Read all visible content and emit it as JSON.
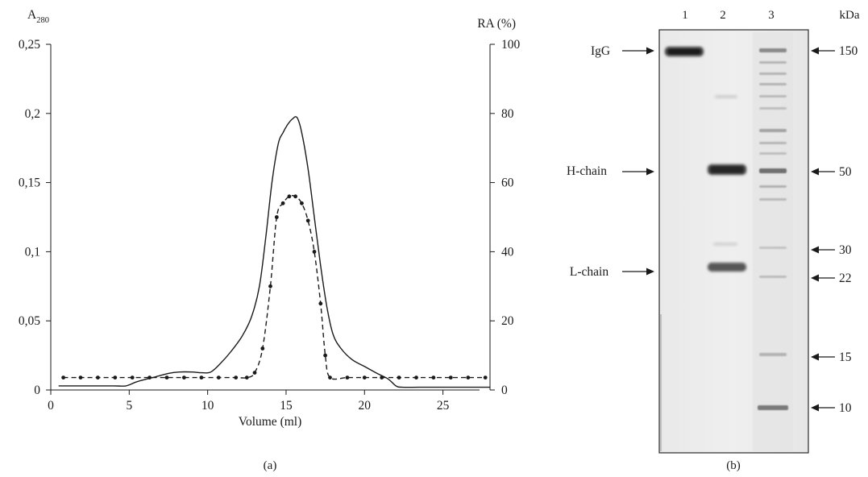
{
  "chart_data": [
    {
      "type": "line",
      "panel_label": "(a)",
      "xlabel": "Volume (ml)",
      "ylabel": "A",
      "ylabel_subscript": "280",
      "y2label": "RA (%)",
      "xlim": [
        0,
        28
      ],
      "ylim": [
        0,
        0.25
      ],
      "y2lim": [
        0,
        100
      ],
      "x_ticks": [
        0,
        5,
        10,
        15,
        20,
        25
      ],
      "x_tick_labels": [
        "0",
        "5",
        "10",
        "15",
        "20",
        "25"
      ],
      "y_ticks": [
        0,
        0.05,
        0.1,
        0.15,
        0.2,
        0.25
      ],
      "y_tick_labels": [
        "0",
        "0,05",
        "0,1",
        "0,15",
        "0,2",
        "0,25"
      ],
      "y2_ticks": [
        0,
        20,
        40,
        60,
        80,
        100
      ],
      "y2_tick_labels": [
        "0",
        "20",
        "40",
        "60",
        "80",
        "100"
      ],
      "grid": false,
      "series": [
        {
          "style": "solid",
          "axis": "left",
          "color": "#1a1a1a",
          "x": [
            0.5,
            2,
            4,
            4.8,
            5.5,
            6.5,
            7.5,
            8.2,
            9,
            9.6,
            10.2,
            10.8,
            11.5,
            12.2,
            12.8,
            13.3,
            13.7,
            14.1,
            14.5,
            14.8,
            15.1,
            15.4,
            15.7,
            16.0,
            16.4,
            16.8,
            17.2,
            17.6,
            18.0,
            18.5,
            19.2,
            20.0,
            20.8,
            21.5,
            22.0,
            22.4,
            23.5,
            25,
            28
          ],
          "y": [
            0.003,
            0.003,
            0.003,
            0.003,
            0.006,
            0.009,
            0.012,
            0.013,
            0.013,
            0.0125,
            0.013,
            0.019,
            0.028,
            0.039,
            0.053,
            0.075,
            0.11,
            0.15,
            0.178,
            0.186,
            0.192,
            0.196,
            0.197,
            0.186,
            0.16,
            0.125,
            0.09,
            0.06,
            0.04,
            0.03,
            0.022,
            0.017,
            0.012,
            0.008,
            0.003,
            0.002,
            0.002,
            0.002,
            0.002
          ]
        },
        {
          "style": "dashed",
          "axis": "right",
          "markers": "filled-circle",
          "color": "#1a1a1a",
          "x": [
            0.8,
            1.9,
            3.0,
            4.1,
            5.2,
            6.3,
            7.4,
            8.5,
            9.6,
            10.7,
            11.8,
            12.5,
            13.0,
            13.5,
            14.0,
            14.4,
            14.8,
            15.2,
            15.6,
            16.0,
            16.4,
            16.8,
            17.2,
            17.5,
            17.8,
            18.9,
            20.0,
            21.1,
            22.2,
            23.3,
            24.4,
            25.5,
            26.6,
            27.7
          ],
          "y": [
            3.6,
            3.6,
            3.6,
            3.6,
            3.6,
            3.6,
            3.6,
            3.6,
            3.6,
            3.6,
            3.6,
            3.6,
            5,
            12,
            30,
            50,
            54,
            56,
            56,
            54,
            49,
            40,
            25,
            10,
            3.6,
            3.6,
            3.6,
            3.6,
            3.6,
            3.6,
            3.6,
            3.6,
            3.6,
            3.6
          ]
        }
      ]
    },
    {
      "type": "gel",
      "panel_label": "(b)",
      "lanes": [
        "1",
        "2",
        "3"
      ],
      "unit_label": "kDa",
      "left_labels": [
        {
          "text": "IgG",
          "band_lane": 1,
          "mw_kda": 150
        },
        {
          "text": "H-chain",
          "band_lane": 2,
          "mw_kda": 50
        },
        {
          "text": "L-chain",
          "band_lane": 2,
          "mw_kda": 24
        }
      ],
      "marker_labels": [
        "150",
        "50",
        "30",
        "22",
        "15",
        "10"
      ]
    }
  ]
}
